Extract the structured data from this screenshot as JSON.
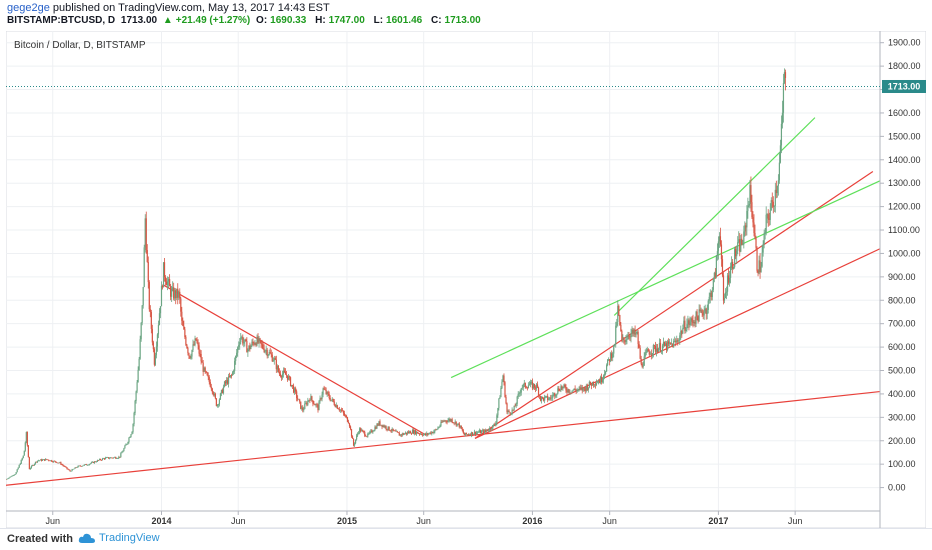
{
  "header": {
    "author": "gege2ge",
    "published_text": "published on TradingView.com, May 13, 2017 14:43 EST",
    "symbol": "BITSTAMP:BTCUSD, D",
    "last": "1713.00",
    "change": "+21.49 (+1.27%)",
    "o_label": "O:",
    "o_value": "1690.33",
    "h_label": "H:",
    "h_value": "1747.00",
    "l_label": "L:",
    "l_value": "1601.46",
    "c_label": "C:",
    "c_value": "1713.00"
  },
  "footer": {
    "created_with": "Created with",
    "brand": "TradingView"
  },
  "colors": {
    "up": "#6ba583",
    "down": "#d75442",
    "red_line": "#e8403a",
    "green_line": "#5ee05a",
    "price_label_bg": "#2a8a8a",
    "grid": "#eef0f3"
  },
  "chart_data": {
    "type": "line",
    "title": "Bitcoin / Dollar, D, BITSTAMP",
    "xlabel": "",
    "ylabel": "",
    "ylim": [
      -100,
      1950
    ],
    "y_ticks": [
      "0.00",
      "100.00",
      "200.00",
      "300.00",
      "400.00",
      "500.00",
      "600.00",
      "700.00",
      "800.00",
      "900.00",
      "1000.00",
      "1100.00",
      "1200.00",
      "1300.00",
      "1400.00",
      "1500.00",
      "1600.00",
      "1700.00",
      "1800.00",
      "1900.00"
    ],
    "y_tick_values": [
      0,
      100,
      200,
      300,
      400,
      500,
      600,
      700,
      800,
      900,
      1000,
      1100,
      1200,
      1300,
      1400,
      1500,
      1600,
      1700,
      1800,
      1900
    ],
    "xlim": [
      "2013-03-01",
      "2017-11-15"
    ],
    "x_ticks": [
      {
        "label": "Jun",
        "date": "2013-06-01",
        "bold": false
      },
      {
        "label": "2014",
        "date": "2014-01-01",
        "bold": true
      },
      {
        "label": "Jun",
        "date": "2014-06-01",
        "bold": false
      },
      {
        "label": "2015",
        "date": "2015-01-01",
        "bold": true
      },
      {
        "label": "Jun",
        "date": "2015-06-01",
        "bold": false
      },
      {
        "label": "2016",
        "date": "2016-01-01",
        "bold": true
      },
      {
        "label": "Jun",
        "date": "2016-06-01",
        "bold": false
      },
      {
        "label": "2017",
        "date": "2017-01-01",
        "bold": true
      },
      {
        "label": "Jun",
        "date": "2017-06-01",
        "bold": false
      }
    ],
    "last_price": 1713,
    "last_price_label": "1713.00",
    "series": [
      {
        "type": "candle-line",
        "points": [
          [
            "2013-03-01",
            35
          ],
          [
            "2013-03-20",
            60
          ],
          [
            "2013-04-05",
            140
          ],
          [
            "2013-04-10",
            230
          ],
          [
            "2013-04-16",
            80
          ],
          [
            "2013-05-01",
            115
          ],
          [
            "2013-05-20",
            120
          ],
          [
            "2013-06-15",
            105
          ],
          [
            "2013-07-05",
            70
          ],
          [
            "2013-07-20",
            90
          ],
          [
            "2013-08-10",
            100
          ],
          [
            "2013-09-10",
            125
          ],
          [
            "2013-10-10",
            130
          ],
          [
            "2013-10-25",
            190
          ],
          [
            "2013-11-05",
            250
          ],
          [
            "2013-11-18",
            550
          ],
          [
            "2013-11-25",
            800
          ],
          [
            "2013-11-30",
            1150
          ],
          [
            "2013-12-07",
            800
          ],
          [
            "2013-12-18",
            540
          ],
          [
            "2013-12-28",
            750
          ],
          [
            "2014-01-05",
            930
          ],
          [
            "2014-01-20",
            830
          ],
          [
            "2014-02-05",
            820
          ],
          [
            "2014-02-10",
            700
          ],
          [
            "2014-02-25",
            560
          ],
          [
            "2014-03-10",
            630
          ],
          [
            "2014-03-25",
            500
          ],
          [
            "2014-04-10",
            430
          ],
          [
            "2014-04-20",
            350
          ],
          [
            "2014-05-05",
            440
          ],
          [
            "2014-05-20",
            480
          ],
          [
            "2014-06-05",
            650
          ],
          [
            "2014-06-20",
            590
          ],
          [
            "2014-07-05",
            630
          ],
          [
            "2014-07-25",
            590
          ],
          [
            "2014-08-10",
            550
          ],
          [
            "2014-08-20",
            490
          ],
          [
            "2014-09-05",
            480
          ],
          [
            "2014-09-20",
            410
          ],
          [
            "2014-10-05",
            330
          ],
          [
            "2014-10-20",
            385
          ],
          [
            "2014-11-05",
            340
          ],
          [
            "2014-11-15",
            420
          ],
          [
            "2014-12-01",
            375
          ],
          [
            "2014-12-20",
            330
          ],
          [
            "2015-01-05",
            280
          ],
          [
            "2015-01-14",
            180
          ],
          [
            "2015-01-25",
            250
          ],
          [
            "2015-02-10",
            220
          ],
          [
            "2015-03-05",
            275
          ],
          [
            "2015-03-25",
            250
          ],
          [
            "2015-04-15",
            225
          ],
          [
            "2015-05-10",
            240
          ],
          [
            "2015-06-05",
            225
          ],
          [
            "2015-06-25",
            245
          ],
          [
            "2015-07-10",
            285
          ],
          [
            "2015-07-25",
            290
          ],
          [
            "2015-08-10",
            265
          ],
          [
            "2015-08-20",
            225
          ],
          [
            "2015-09-10",
            235
          ],
          [
            "2015-10-01",
            240
          ],
          [
            "2015-10-20",
            270
          ],
          [
            "2015-11-04",
            480
          ],
          [
            "2015-11-12",
            320
          ],
          [
            "2015-11-25",
            330
          ],
          [
            "2015-12-10",
            430
          ],
          [
            "2015-12-25",
            440
          ],
          [
            "2016-01-10",
            430
          ],
          [
            "2016-01-17",
            380
          ],
          [
            "2016-02-05",
            380
          ],
          [
            "2016-02-25",
            430
          ],
          [
            "2016-03-15",
            415
          ],
          [
            "2016-04-10",
            420
          ],
          [
            "2016-04-30",
            450
          ],
          [
            "2016-05-15",
            460
          ],
          [
            "2016-05-28",
            530
          ],
          [
            "2016-06-10",
            600
          ],
          [
            "2016-06-17",
            760
          ],
          [
            "2016-06-25",
            620
          ],
          [
            "2016-07-10",
            660
          ],
          [
            "2016-07-25",
            650
          ],
          [
            "2016-08-02",
            520
          ],
          [
            "2016-08-15",
            580
          ],
          [
            "2016-09-05",
            600
          ],
          [
            "2016-09-25",
            605
          ],
          [
            "2016-10-10",
            620
          ],
          [
            "2016-10-25",
            690
          ],
          [
            "2016-11-10",
            710
          ],
          [
            "2016-11-25",
            740
          ],
          [
            "2016-12-10",
            770
          ],
          [
            "2016-12-25",
            900
          ],
          [
            "2017-01-04",
            1120
          ],
          [
            "2017-01-11",
            780
          ],
          [
            "2017-01-20",
            900
          ],
          [
            "2017-02-05",
            1010
          ],
          [
            "2017-02-20",
            1060
          ],
          [
            "2017-03-03",
            1270
          ],
          [
            "2017-03-10",
            1150
          ],
          [
            "2017-03-18",
            950
          ],
          [
            "2017-03-25",
            940
          ],
          [
            "2017-04-05",
            1130
          ],
          [
            "2017-04-20",
            1230
          ],
          [
            "2017-04-30",
            1350
          ],
          [
            "2017-05-07",
            1580
          ],
          [
            "2017-05-10",
            1800
          ],
          [
            "2017-05-12",
            1690
          ],
          [
            "2017-05-13",
            1713
          ]
        ]
      }
    ],
    "trendlines": [
      {
        "color": "red",
        "from": [
          "2013-03-01",
          10
        ],
        "to": [
          "2017-11-15",
          410
        ]
      },
      {
        "color": "red",
        "from": [
          "2014-01-05",
          865
        ],
        "to": [
          "2015-06-05",
          225
        ]
      },
      {
        "color": "red",
        "from": [
          "2015-09-10",
          210
        ],
        "to": [
          "2017-11-15",
          1020
        ]
      },
      {
        "color": "red",
        "from": [
          "2015-09-10",
          210
        ],
        "to": [
          "2017-11-01",
          1350
        ]
      },
      {
        "color": "green",
        "from": [
          "2015-07-25",
          470
        ],
        "to": [
          "2017-11-15",
          1310
        ]
      },
      {
        "color": "green",
        "from": [
          "2016-06-10",
          735
        ],
        "to": [
          "2017-07-10",
          1580
        ]
      }
    ]
  }
}
